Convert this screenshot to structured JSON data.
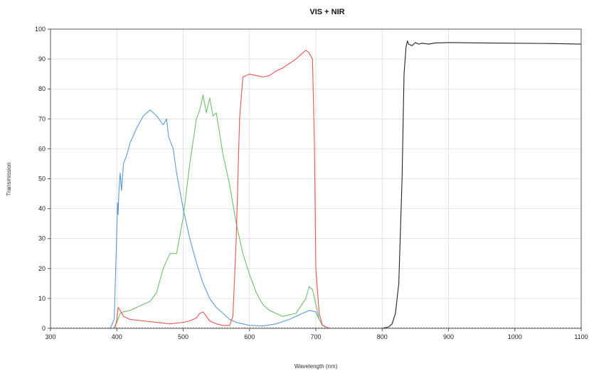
{
  "chart_data": {
    "type": "line",
    "title": "VIS + NIR",
    "xlabel": "Wavelength (nm)",
    "ylabel": "Transmission",
    "xlim": [
      300,
      1100
    ],
    "ylim": [
      0,
      100
    ],
    "xticks": [
      300,
      400,
      500,
      600,
      700,
      800,
      900,
      1000,
      1100
    ],
    "yticks": [
      0,
      10,
      20,
      30,
      40,
      50,
      60,
      70,
      80,
      90,
      100
    ],
    "grid": true,
    "series": [
      {
        "color": "#5b9bd5",
        "x": [
          300,
          390,
          396,
          399,
          401,
          402,
          403,
          405,
          407,
          410,
          415,
          420,
          430,
          440,
          450,
          460,
          470,
          475,
          478,
          485,
          490,
          500,
          510,
          520,
          530,
          540,
          550,
          560,
          570,
          580,
          590,
          600,
          620,
          640,
          660,
          680,
          690,
          700,
          705,
          710,
          720,
          800,
          1100
        ],
        "y": [
          0,
          0,
          3,
          25,
          42,
          38,
          45,
          52,
          46,
          55,
          58,
          62,
          67,
          71,
          73,
          71,
          68,
          70,
          64,
          60,
          52,
          40,
          30,
          22,
          15,
          10,
          7,
          5,
          3,
          2,
          1.5,
          1,
          0.8,
          1.5,
          3,
          5,
          6,
          5.5,
          3,
          1,
          0,
          0,
          0
        ]
      },
      {
        "color": "#6fbf6f",
        "x": [
          300,
          395,
          400,
          405,
          410,
          420,
          430,
          440,
          450,
          460,
          470,
          480,
          490,
          500,
          510,
          520,
          525,
          530,
          535,
          540,
          545,
          550,
          555,
          560,
          570,
          580,
          590,
          600,
          610,
          620,
          630,
          650,
          670,
          685,
          690,
          695,
          700,
          705,
          710,
          720,
          1100
        ],
        "y": [
          0,
          0,
          2,
          5,
          5.5,
          6,
          7,
          8,
          9,
          12,
          20,
          25,
          25,
          37,
          55,
          70,
          73,
          78,
          72,
          77,
          71,
          72,
          65,
          58,
          48,
          35,
          25,
          18,
          12,
          8,
          6,
          4,
          5,
          10,
          14,
          13,
          8,
          3,
          1,
          0,
          0
        ]
      },
      {
        "color": "#e8534f",
        "x": [
          300,
          397,
          400,
          402,
          405,
          410,
          420,
          440,
          460,
          480,
          500,
          510,
          520,
          525,
          530,
          535,
          540,
          550,
          560,
          570,
          575,
          580,
          585,
          590,
          600,
          610,
          620,
          630,
          640,
          650,
          660,
          670,
          680,
          685,
          690,
          695,
          698,
          700,
          705,
          710,
          720,
          1100
        ],
        "y": [
          0,
          0,
          3,
          7,
          6,
          4,
          3,
          2.5,
          2,
          1.5,
          2,
          2.5,
          3.5,
          5,
          5.5,
          4,
          2.5,
          1.5,
          1,
          1,
          4,
          30,
          70,
          84,
          85,
          84.5,
          84,
          84.5,
          86,
          87,
          88.5,
          90,
          92,
          93,
          92,
          90,
          60,
          20,
          5,
          1,
          0,
          0
        ]
      },
      {
        "color": "#222222",
        "x": [
          300,
          800,
          810,
          815,
          820,
          825,
          830,
          833,
          836,
          838,
          840,
          845,
          850,
          855,
          860,
          870,
          880,
          900,
          950,
          1000,
          1050,
          1100
        ],
        "y": [
          0,
          0,
          0.5,
          1.5,
          5,
          15,
          50,
          85,
          94,
          96,
          95,
          94.5,
          95.5,
          95,
          95.3,
          95,
          95.4,
          95.5,
          95.4,
          95.3,
          95.2,
          95
        ]
      }
    ]
  }
}
